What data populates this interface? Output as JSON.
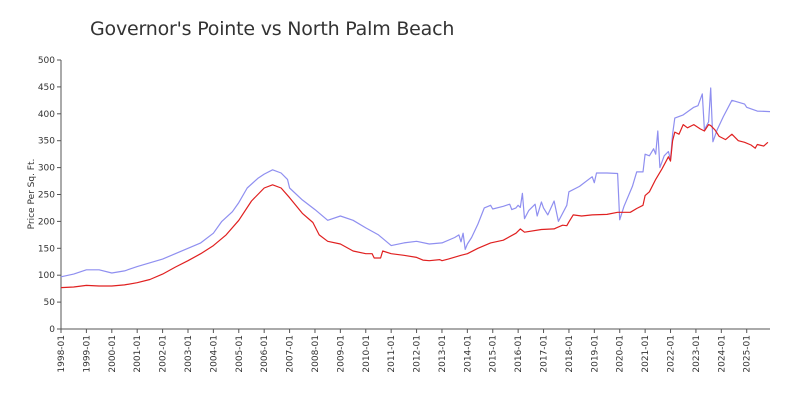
{
  "chart_data": {
    "type": "line",
    "title": "Governor's Pointe vs North Palm Beach",
    "ylabel": "Price Per Sq. Ft.",
    "ylim": [
      0,
      500
    ],
    "yticks": [
      0,
      50,
      100,
      150,
      200,
      250,
      300,
      350,
      400,
      450,
      500
    ],
    "xlim": [
      "1998-01",
      "2025-12"
    ],
    "xticks": [
      "1998-01",
      "1999-01",
      "2000-01",
      "2001-01",
      "2002-01",
      "2003-01",
      "2004-01",
      "2005-01",
      "2006-01",
      "2007-01",
      "2008-01",
      "2009-01",
      "2010-01",
      "2011-01",
      "2012-01",
      "2013-01",
      "2014-01",
      "2015-01",
      "2016-01",
      "2017-01",
      "2018-01",
      "2019-01",
      "2020-01",
      "2021-01",
      "2022-01",
      "2023-01",
      "2024-01",
      "2025-01"
    ],
    "grid": false,
    "legend": "none",
    "series": [
      {
        "color": "#8f8ff0",
        "points": [
          [
            "1998-01",
            97
          ],
          [
            "1998-07",
            102
          ],
          [
            "1999-01",
            110
          ],
          [
            "1999-07",
            110
          ],
          [
            "2000-01",
            104
          ],
          [
            "2000-07",
            108
          ],
          [
            "2001-01",
            116
          ],
          [
            "2001-07",
            123
          ],
          [
            "2002-01",
            130
          ],
          [
            "2002-07",
            140
          ],
          [
            "2003-01",
            150
          ],
          [
            "2003-07",
            160
          ],
          [
            "2004-01",
            178
          ],
          [
            "2004-05",
            200
          ],
          [
            "2004-10",
            218
          ],
          [
            "2005-01",
            235
          ],
          [
            "2005-05",
            262
          ],
          [
            "2005-10",
            280
          ],
          [
            "2006-01",
            288
          ],
          [
            "2006-05",
            296
          ],
          [
            "2006-09",
            290
          ],
          [
            "2006-12",
            278
          ],
          [
            "2007-01",
            262
          ],
          [
            "2007-07",
            240
          ],
          [
            "2008-01",
            222
          ],
          [
            "2008-07",
            202
          ],
          [
            "2009-01",
            210
          ],
          [
            "2009-07",
            202
          ],
          [
            "2010-01",
            188
          ],
          [
            "2010-07",
            175
          ],
          [
            "2011-01",
            155
          ],
          [
            "2011-07",
            160
          ],
          [
            "2012-01",
            163
          ],
          [
            "2012-07",
            158
          ],
          [
            "2013-01",
            160
          ],
          [
            "2013-07",
            170
          ],
          [
            "2013-09",
            175
          ],
          [
            "2013-10",
            162
          ],
          [
            "2013-11",
            178
          ],
          [
            "2013-12",
            148
          ],
          [
            "2014-01",
            158
          ],
          [
            "2014-03",
            170
          ],
          [
            "2014-06",
            195
          ],
          [
            "2014-09",
            225
          ],
          [
            "2014-12",
            230
          ],
          [
            "2015-01",
            223
          ],
          [
            "2015-06",
            228
          ],
          [
            "2015-09",
            232
          ],
          [
            "2015-10",
            222
          ],
          [
            "2015-12",
            225
          ],
          [
            "2016-01",
            230
          ],
          [
            "2016-02",
            226
          ],
          [
            "2016-03",
            252
          ],
          [
            "2016-04",
            205
          ],
          [
            "2016-06",
            220
          ],
          [
            "2016-09",
            232
          ],
          [
            "2016-10",
            210
          ],
          [
            "2016-12",
            236
          ],
          [
            "2017-01",
            225
          ],
          [
            "2017-03",
            212
          ],
          [
            "2017-06",
            238
          ],
          [
            "2017-08",
            200
          ],
          [
            "2017-12",
            230
          ],
          [
            "2018-01",
            255
          ],
          [
            "2018-06",
            265
          ],
          [
            "2018-12",
            283
          ],
          [
            "2019-01",
            272
          ],
          [
            "2019-02",
            290
          ],
          [
            "2019-07",
            290
          ],
          [
            "2019-12",
            289
          ],
          [
            "2020-01",
            203
          ],
          [
            "2020-03",
            228
          ],
          [
            "2020-07",
            265
          ],
          [
            "2020-09",
            292
          ],
          [
            "2020-12",
            292
          ],
          [
            "2021-01",
            325
          ],
          [
            "2021-03",
            322
          ],
          [
            "2021-05",
            335
          ],
          [
            "2021-06",
            325
          ],
          [
            "2021-07",
            368
          ],
          [
            "2021-08",
            300
          ],
          [
            "2021-10",
            322
          ],
          [
            "2021-12",
            330
          ],
          [
            "2022-01",
            315
          ],
          [
            "2022-02",
            362
          ],
          [
            "2022-03",
            392
          ],
          [
            "2022-07",
            398
          ],
          [
            "2022-12",
            412
          ],
          [
            "2023-02",
            415
          ],
          [
            "2023-04",
            437
          ],
          [
            "2023-05",
            370
          ],
          [
            "2023-07",
            385
          ],
          [
            "2023-08",
            448
          ],
          [
            "2023-09",
            348
          ],
          [
            "2023-11",
            370
          ],
          [
            "2024-02",
            395
          ],
          [
            "2024-06",
            425
          ],
          [
            "2024-12",
            418
          ],
          [
            "2025-01",
            412
          ],
          [
            "2025-06",
            405
          ],
          [
            "2025-12",
            404
          ]
        ]
      },
      {
        "color": "#e02020",
        "points": [
          [
            "1998-01",
            77
          ],
          [
            "1998-07",
            78
          ],
          [
            "1999-01",
            81
          ],
          [
            "1999-07",
            80
          ],
          [
            "2000-01",
            80
          ],
          [
            "2000-07",
            82
          ],
          [
            "2001-01",
            86
          ],
          [
            "2001-07",
            92
          ],
          [
            "2002-01",
            102
          ],
          [
            "2002-07",
            115
          ],
          [
            "2003-01",
            127
          ],
          [
            "2003-07",
            140
          ],
          [
            "2004-01",
            155
          ],
          [
            "2004-07",
            175
          ],
          [
            "2005-01",
            202
          ],
          [
            "2005-07",
            238
          ],
          [
            "2006-01",
            262
          ],
          [
            "2006-05",
            268
          ],
          [
            "2006-09",
            262
          ],
          [
            "2007-01",
            244
          ],
          [
            "2007-07",
            215
          ],
          [
            "2007-12",
            198
          ],
          [
            "2008-03",
            175
          ],
          [
            "2008-07",
            163
          ],
          [
            "2009-01",
            158
          ],
          [
            "2009-07",
            145
          ],
          [
            "2010-01",
            140
          ],
          [
            "2010-04",
            140
          ],
          [
            "2010-05",
            132
          ],
          [
            "2010-08",
            132
          ],
          [
            "2010-09",
            145
          ],
          [
            "2011-01",
            140
          ],
          [
            "2011-07",
            137
          ],
          [
            "2012-01",
            133
          ],
          [
            "2012-04",
            128
          ],
          [
            "2012-07",
            127
          ],
          [
            "2012-12",
            129
          ],
          [
            "2013-01",
            127
          ],
          [
            "2013-04",
            130
          ],
          [
            "2013-10",
            137
          ],
          [
            "2014-01",
            140
          ],
          [
            "2014-06",
            150
          ],
          [
            "2014-12",
            160
          ],
          [
            "2015-06",
            165
          ],
          [
            "2015-12",
            178
          ],
          [
            "2016-02",
            186
          ],
          [
            "2016-04",
            180
          ],
          [
            "2016-12",
            185
          ],
          [
            "2017-06",
            186
          ],
          [
            "2017-07",
            188
          ],
          [
            "2017-10",
            193
          ],
          [
            "2017-12",
            192
          ],
          [
            "2018-01",
            199
          ],
          [
            "2018-03",
            212
          ],
          [
            "2018-07",
            210
          ],
          [
            "2018-12",
            212
          ],
          [
            "2019-07",
            213
          ],
          [
            "2019-12",
            217
          ],
          [
            "2020-06",
            217
          ],
          [
            "2020-09",
            224
          ],
          [
            "2020-12",
            230
          ],
          [
            "2021-01",
            248
          ],
          [
            "2021-03",
            255
          ],
          [
            "2021-06",
            278
          ],
          [
            "2021-09",
            298
          ],
          [
            "2021-12",
            320
          ],
          [
            "2022-01",
            312
          ],
          [
            "2022-02",
            350
          ],
          [
            "2022-03",
            366
          ],
          [
            "2022-05",
            362
          ],
          [
            "2022-07",
            380
          ],
          [
            "2022-09",
            374
          ],
          [
            "2022-12",
            380
          ],
          [
            "2023-03",
            372
          ],
          [
            "2023-05",
            368
          ],
          [
            "2023-07",
            380
          ],
          [
            "2023-08",
            378
          ],
          [
            "2023-10",
            370
          ],
          [
            "2023-12",
            358
          ],
          [
            "2024-03",
            352
          ],
          [
            "2024-06",
            362
          ],
          [
            "2024-09",
            350
          ],
          [
            "2024-12",
            347
          ],
          [
            "2025-03",
            342
          ],
          [
            "2025-05",
            336
          ],
          [
            "2025-06",
            343
          ],
          [
            "2025-09",
            340
          ],
          [
            "2025-11",
            347
          ]
        ]
      }
    ]
  }
}
